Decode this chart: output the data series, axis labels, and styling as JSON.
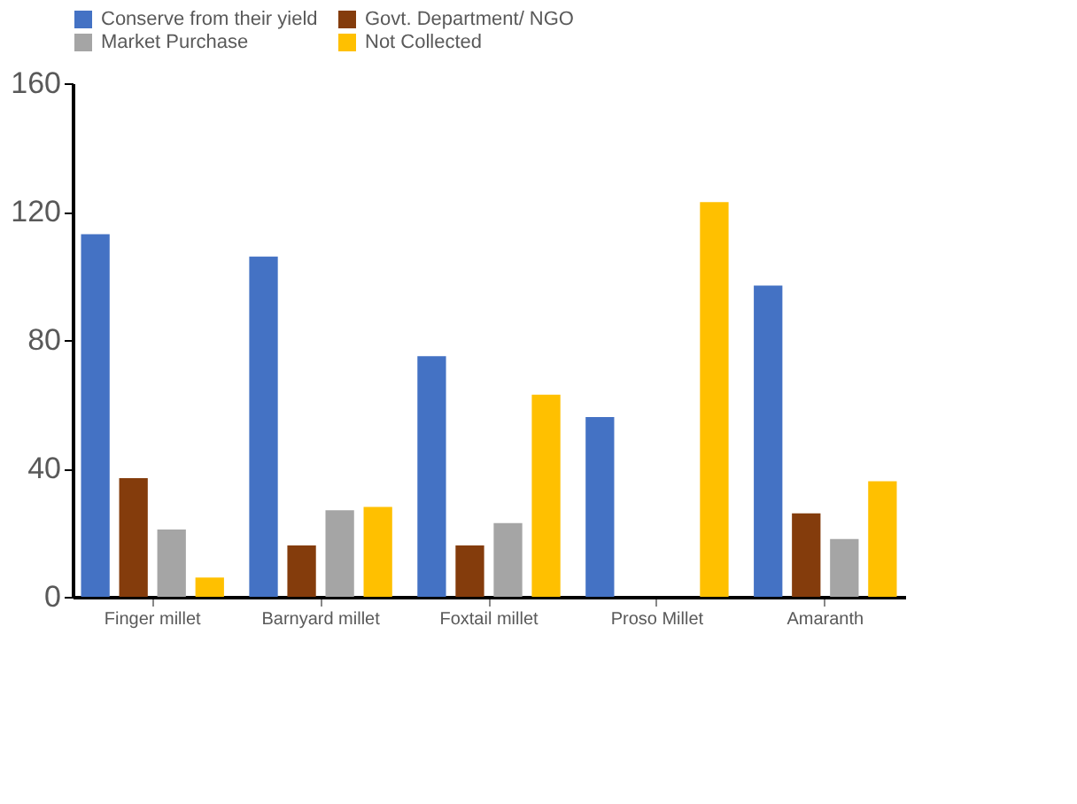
{
  "chart_data": {
    "type": "bar",
    "categories": [
      "Finger millet",
      "Barnyard millet",
      "Foxtail millet",
      "Proso Millet",
      "Amaranth"
    ],
    "series": [
      {
        "name": "Conserve from their yield",
        "color": "#4472c4",
        "values": [
          113,
          106,
          75,
          56,
          97
        ]
      },
      {
        "name": "Govt. Department/ NGO",
        "color": "#843c0c",
        "values": [
          37,
          16,
          16,
          0,
          26
        ]
      },
      {
        "name": "Market Purchase",
        "color": "#a5a5a5",
        "values": [
          21,
          27,
          23,
          0,
          18
        ]
      },
      {
        "name": "Not Collected",
        "color": "#ffc000",
        "values": [
          6,
          28,
          63,
          123,
          36
        ]
      }
    ],
    "ylim": [
      0,
      160
    ],
    "yticks": [
      0,
      40,
      80,
      120,
      160
    ],
    "grid": false,
    "legend": "top"
  }
}
